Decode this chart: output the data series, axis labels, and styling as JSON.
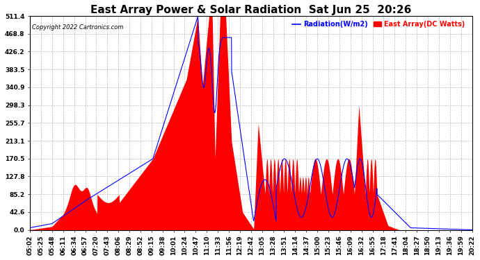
{
  "title": "East Array Power & Solar Radiation  Sat Jun 25  20:26",
  "copyright": "Copyright 2022 Cartronics.com",
  "legend_radiation": "Radiation(W/m2)",
  "legend_east_array": "East Array(DC Watts)",
  "radiation_color": "#0000FF",
  "east_array_color": "#FF0000",
  "background_color": "#FFFFFF",
  "grid_color": "#AAAAAA",
  "yticks": [
    0.0,
    42.6,
    85.2,
    127.8,
    170.5,
    213.1,
    255.7,
    298.3,
    340.9,
    383.5,
    426.2,
    468.8,
    511.4
  ],
  "ymax": 511.4,
  "ymin": 0.0,
  "title_fontsize": 11,
  "tick_fontsize": 6.5,
  "xtick_labels": [
    "05:02",
    "05:25",
    "05:48",
    "06:11",
    "06:34",
    "06:57",
    "07:20",
    "07:43",
    "08:06",
    "08:29",
    "08:52",
    "09:15",
    "09:38",
    "10:01",
    "10:24",
    "10:47",
    "11:10",
    "11:33",
    "11:56",
    "12:19",
    "12:42",
    "13:05",
    "13:28",
    "13:51",
    "14:14",
    "14:37",
    "15:00",
    "15:23",
    "15:46",
    "16:09",
    "16:32",
    "16:55",
    "17:18",
    "17:41",
    "18:04",
    "18:27",
    "18:50",
    "19:13",
    "19:36",
    "19:59",
    "20:22"
  ]
}
